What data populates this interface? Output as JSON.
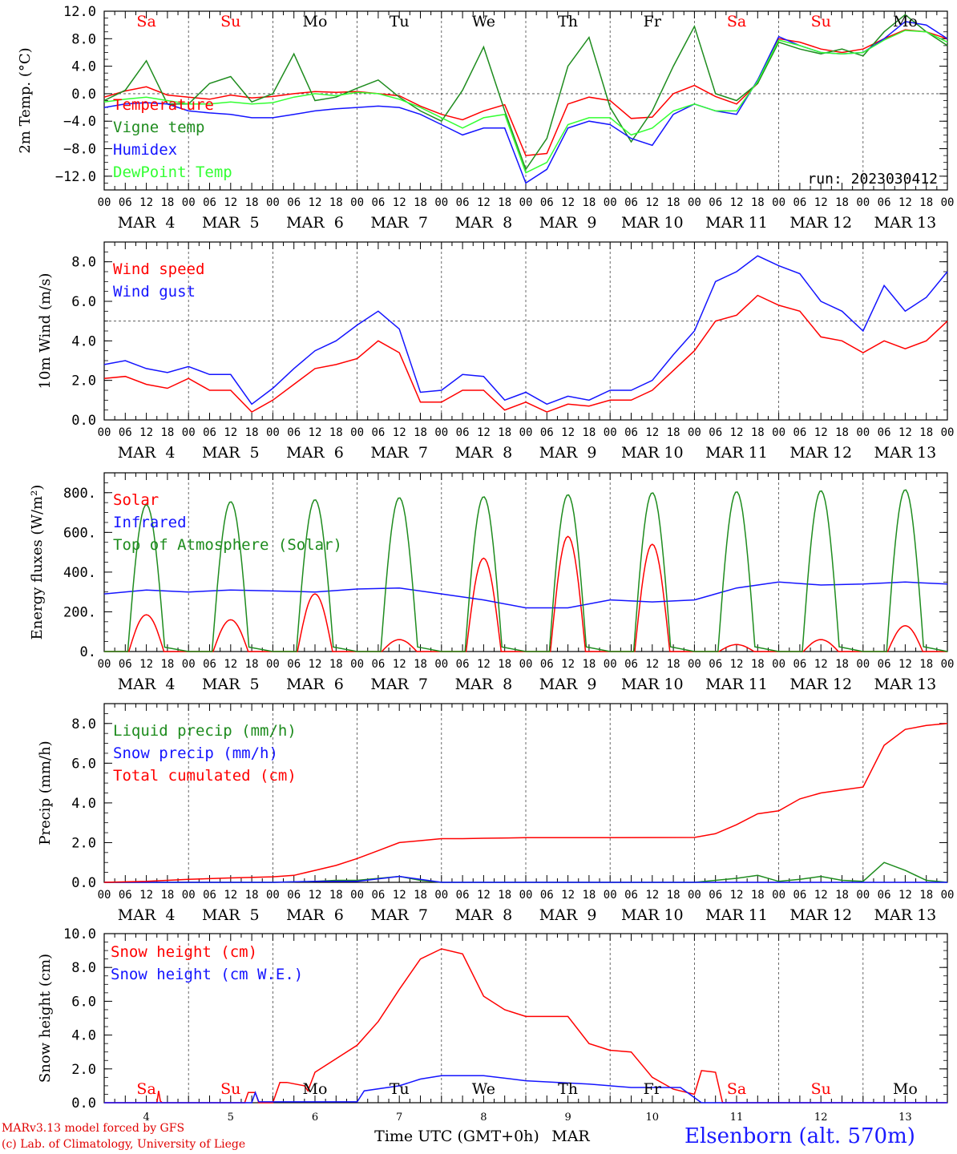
{
  "footer": {
    "credit_line1": "MARv3.13 model forced by GFS",
    "credit_line2": "(c) Lab. of Climatology, University of Liege",
    "station": "Elsenborn (alt. 570m)",
    "time_axis_label": "Time UTC (GMT+0h)",
    "month_label": "MAR"
  },
  "colors": {
    "red": "#ff0000",
    "green": "#1e8c1e",
    "blue": "#1414ff",
    "light_green": "#33ff33",
    "black": "#000000"
  },
  "time_axis": {
    "hour_ticks": [
      "00",
      "06",
      "12",
      "18"
    ],
    "day_labels": [
      "MAR  4",
      "MAR  5",
      "MAR  6",
      "MAR  7",
      "MAR  8",
      "MAR  9",
      "MAR 10",
      "MAR 11",
      "MAR 12",
      "MAR 13"
    ],
    "final_tick": "00",
    "weekdays": [
      "Sa",
      "Su",
      "Mo",
      "Tu",
      "We",
      "Th",
      "Fr",
      "Sa",
      "Su",
      "Mo"
    ],
    "weekday_colors": [
      "red",
      "red",
      "black",
      "black",
      "black",
      "black",
      "black",
      "red",
      "red",
      "black"
    ],
    "day_numbers": [
      "4",
      "5",
      "6",
      "7",
      "8",
      "9",
      "10",
      "11",
      "12",
      "13"
    ]
  },
  "chart_data": [
    {
      "type": "line",
      "ylabel": "2m Temp. (°C)",
      "ylim": [
        -14,
        12
      ],
      "yticks": [
        "12.0",
        "8.0",
        "4.0",
        "0.0",
        "−4.0",
        "−8.0",
        "−12.0"
      ],
      "ytick_values": [
        12,
        8,
        4,
        0,
        -4,
        -8,
        -12
      ],
      "reference_line": 0,
      "annotation": "run: 2023030412",
      "x_unit": "hours since MAR 4 00 UTC",
      "series": [
        {
          "name": "Temperature",
          "color": "red",
          "x": [
            0,
            6,
            12,
            18,
            24,
            30,
            36,
            42,
            48,
            54,
            60,
            66,
            72,
            78,
            84,
            90,
            96,
            102,
            108,
            114,
            120,
            126,
            132,
            138,
            144,
            150,
            156,
            162,
            168,
            174,
            180,
            186,
            192,
            198,
            204,
            210,
            216,
            222,
            228,
            234,
            240
          ],
          "values": [
            -0.5,
            0.4,
            1.0,
            -0.2,
            -0.5,
            -0.8,
            -0.2,
            -0.6,
            -0.4,
            0.0,
            0.3,
            0.2,
            0.3,
            0.0,
            -0.3,
            -1.8,
            -3.0,
            -3.8,
            -2.5,
            -1.6,
            -9.0,
            -8.7,
            -1.5,
            -0.5,
            -1.0,
            -3.6,
            -3.4,
            0.0,
            1.2,
            -0.4,
            -1.5,
            1.5,
            8.0,
            7.5,
            6.5,
            6.0,
            6.5,
            8.0,
            9.3,
            9.0,
            8.0
          ]
        },
        {
          "name": "Vigne temp",
          "color": "green",
          "x": [
            0,
            6,
            12,
            18,
            24,
            30,
            36,
            42,
            48,
            54,
            60,
            66,
            72,
            78,
            84,
            90,
            96,
            102,
            108,
            114,
            120,
            126,
            132,
            138,
            144,
            150,
            156,
            162,
            168,
            174,
            180,
            186,
            192,
            198,
            204,
            210,
            216,
            222,
            228,
            234,
            240
          ],
          "values": [
            -1.0,
            0.5,
            4.8,
            -1.5,
            -1.5,
            1.5,
            2.5,
            -1.2,
            0.0,
            5.8,
            -1.0,
            -0.5,
            0.8,
            2.0,
            -0.5,
            -2.5,
            -4.0,
            0.5,
            6.8,
            -2.5,
            -11.0,
            -6.5,
            4.0,
            8.2,
            -2.0,
            -7.0,
            -2.5,
            4.0,
            9.8,
            0.0,
            -1.0,
            1.5,
            7.5,
            6.5,
            5.8,
            6.5,
            5.5,
            9.0,
            11.5,
            9.0,
            7.0
          ]
        },
        {
          "name": "Humidex",
          "color": "blue",
          "x": [
            0,
            6,
            12,
            18,
            24,
            30,
            36,
            42,
            48,
            54,
            60,
            66,
            72,
            78,
            84,
            90,
            96,
            102,
            108,
            114,
            120,
            126,
            132,
            138,
            144,
            150,
            156,
            162,
            168,
            174,
            180,
            186,
            192,
            198,
            204,
            210,
            216,
            222,
            228,
            234,
            240
          ],
          "values": [
            -2.0,
            -1.5,
            -1.3,
            -1.5,
            -2.5,
            -2.8,
            -3.0,
            -3.5,
            -3.5,
            -3.0,
            -2.5,
            -2.2,
            -2.0,
            -1.8,
            -2.0,
            -3.0,
            -4.5,
            -6.0,
            -5.0,
            -5.0,
            -13.0,
            -11.0,
            -5.0,
            -4.0,
            -4.5,
            -6.5,
            -7.5,
            -3.0,
            -1.5,
            -2.5,
            -3.0,
            2.0,
            8.3,
            7.0,
            6.0,
            5.8,
            6.0,
            8.0,
            10.5,
            10.0,
            8.0
          ]
        },
        {
          "name": "DewPoint Temp",
          "color": "light_green",
          "x": [
            0,
            6,
            12,
            18,
            24,
            30,
            36,
            42,
            48,
            54,
            60,
            66,
            72,
            78,
            84,
            90,
            96,
            102,
            108,
            114,
            120,
            126,
            132,
            138,
            144,
            150,
            156,
            162,
            168,
            174,
            180,
            186,
            192,
            198,
            204,
            210,
            216,
            222,
            228,
            234,
            240
          ],
          "values": [
            -1.2,
            -0.8,
            -0.5,
            -1.0,
            -1.5,
            -1.5,
            -1.2,
            -1.5,
            -1.3,
            -0.5,
            0.0,
            -0.3,
            0.2,
            0.0,
            -0.8,
            -2.0,
            -3.5,
            -5.0,
            -3.5,
            -3.0,
            -11.5,
            -10.0,
            -4.5,
            -3.5,
            -3.5,
            -6.0,
            -5.0,
            -2.5,
            -1.5,
            -2.5,
            -2.5,
            1.8,
            7.8,
            7.0,
            6.0,
            5.8,
            6.0,
            7.8,
            9.2,
            9.0,
            7.5
          ]
        }
      ]
    },
    {
      "type": "line",
      "ylabel": "10m Wind (m/s)",
      "ylim": [
        0,
        9
      ],
      "yticks": [
        "8.0",
        "6.0",
        "4.0",
        "2.0",
        "0.0"
      ],
      "ytick_values": [
        8,
        6,
        4,
        2,
        0
      ],
      "reference_line": 5,
      "x_unit": "hours since MAR 4 00 UTC",
      "series": [
        {
          "name": "Wind speed",
          "color": "red",
          "x": [
            0,
            6,
            12,
            18,
            24,
            30,
            36,
            42,
            48,
            54,
            60,
            66,
            72,
            78,
            84,
            90,
            96,
            102,
            108,
            114,
            120,
            126,
            132,
            138,
            144,
            150,
            156,
            162,
            168,
            174,
            180,
            186,
            192,
            198,
            204,
            210,
            216,
            222,
            228,
            234,
            240
          ],
          "values": [
            2.1,
            2.2,
            1.8,
            1.6,
            2.1,
            1.5,
            1.5,
            0.4,
            1.0,
            1.8,
            2.6,
            2.8,
            3.1,
            4.0,
            3.4,
            0.9,
            0.9,
            1.5,
            1.5,
            0.5,
            0.9,
            0.4,
            0.8,
            0.7,
            1.0,
            1.0,
            1.5,
            2.5,
            3.5,
            5.0,
            5.3,
            6.3,
            5.8,
            5.5,
            4.2,
            4.0,
            3.4,
            4.0,
            3.6,
            4.0,
            5.0
          ]
        },
        {
          "name": "Wind gust",
          "color": "blue",
          "x": [
            0,
            6,
            12,
            18,
            24,
            30,
            36,
            42,
            48,
            54,
            60,
            66,
            72,
            78,
            84,
            90,
            96,
            102,
            108,
            114,
            120,
            126,
            132,
            138,
            144,
            150,
            156,
            162,
            168,
            174,
            180,
            186,
            192,
            198,
            204,
            210,
            216,
            222,
            228,
            234,
            240
          ],
          "values": [
            2.8,
            3.0,
            2.6,
            2.4,
            2.7,
            2.3,
            2.3,
            0.8,
            1.6,
            2.6,
            3.5,
            4.0,
            4.8,
            5.5,
            4.6,
            1.4,
            1.5,
            2.3,
            2.2,
            1.0,
            1.4,
            0.8,
            1.2,
            1.0,
            1.5,
            1.5,
            2.0,
            3.3,
            4.5,
            7.0,
            7.5,
            8.3,
            7.8,
            7.4,
            6.0,
            5.5,
            4.5,
            6.8,
            5.5,
            6.2,
            7.5
          ]
        }
      ]
    },
    {
      "type": "line",
      "ylabel": "Energy fluxes (W/m²)",
      "ylim": [
        0,
        900
      ],
      "yticks": [
        "800.",
        "600.",
        "400.",
        "200.",
        "0."
      ],
      "ytick_values": [
        800,
        600,
        400,
        200,
        0
      ],
      "x_unit": "hours since MAR 4 00 UTC",
      "series": [
        {
          "name": "Solar",
          "color": "red",
          "daily_peak_hour": 12,
          "daily_halfwidth_hours": 5,
          "daily_peaks": [
            185,
            160,
            290,
            60,
            470,
            580,
            540,
            35,
            60,
            130
          ]
        },
        {
          "name": "Infrared",
          "color": "blue",
          "x": [
            0,
            12,
            24,
            36,
            48,
            60,
            72,
            84,
            96,
            108,
            120,
            132,
            144,
            156,
            168,
            180,
            192,
            204,
            216,
            228,
            240
          ],
          "values": [
            290,
            310,
            300,
            310,
            305,
            300,
            315,
            320,
            290,
            260,
            220,
            220,
            260,
            250,
            260,
            320,
            350,
            335,
            340,
            350,
            340
          ]
        },
        {
          "name": "Top of Atmosphere (Solar)",
          "color": "green",
          "daily_peak_hour": 12,
          "daily_halfwidth_hours": 5.3,
          "daily_peaks": [
            740,
            755,
            765,
            775,
            780,
            790,
            800,
            805,
            810,
            815
          ]
        }
      ]
    },
    {
      "type": "line",
      "ylabel": "Precip (mm/h)",
      "ylim": [
        0,
        9
      ],
      "yticks": [
        "8.0",
        "6.0",
        "4.0",
        "2.0",
        "0.0"
      ],
      "ytick_values": [
        8,
        6,
        4,
        2,
        0
      ],
      "x_unit": "hours since MAR 4 00 UTC",
      "series": [
        {
          "name": "Liquid precip (mm/h)",
          "color": "green",
          "x": [
            0,
            24,
            48,
            60,
            66,
            72,
            84,
            90,
            96,
            108,
            120,
            144,
            168,
            174,
            180,
            186,
            192,
            198,
            204,
            210,
            216,
            222,
            228,
            234,
            240
          ],
          "values": [
            0,
            0,
            0,
            0.05,
            0.1,
            0.1,
            0.3,
            0.1,
            0,
            0,
            0,
            0,
            0,
            0.1,
            0.2,
            0.35,
            0.05,
            0.15,
            0.3,
            0.1,
            0.05,
            1.0,
            0.6,
            0.1,
            0
          ]
        },
        {
          "name": "Snow precip (mm/h)",
          "color": "blue",
          "x": [
            0,
            48,
            60,
            72,
            84,
            90,
            96,
            108,
            120,
            240
          ],
          "values": [
            0,
            0,
            0.05,
            0.05,
            0.3,
            0.15,
            0,
            0,
            0,
            0
          ]
        },
        {
          "name": "Total cumulated (cm)",
          "color": "red",
          "x": [
            0,
            12,
            24,
            36,
            48,
            54,
            60,
            66,
            72,
            78,
            84,
            90,
            96,
            102,
            108,
            120,
            144,
            168,
            174,
            180,
            186,
            192,
            198,
            204,
            210,
            216,
            222,
            228,
            234,
            240
          ],
          "values": [
            0,
            0.05,
            0.15,
            0.22,
            0.28,
            0.35,
            0.6,
            0.85,
            1.2,
            1.6,
            2.0,
            2.1,
            2.2,
            2.2,
            2.22,
            2.25,
            2.25,
            2.26,
            2.45,
            2.9,
            3.45,
            3.6,
            4.2,
            4.5,
            4.65,
            4.8,
            6.9,
            7.7,
            7.9,
            8.0
          ]
        }
      ]
    },
    {
      "type": "line",
      "ylabel": "Snow height (cm)",
      "ylim": [
        0,
        10
      ],
      "yticks": [
        "10.0",
        "8.0",
        "6.0",
        "4.0",
        "2.0",
        "0.0"
      ],
      "ytick_values": [
        10,
        8,
        6,
        4,
        2,
        0
      ],
      "x_unit": "hours since MAR 4 00 UTC",
      "series": [
        {
          "name": "Snow height (cm)",
          "color": "red",
          "x": [
            0,
            15,
            15.5,
            16,
            16.5,
            40,
            41,
            43,
            44,
            48,
            50,
            52,
            57,
            58,
            60,
            66,
            72,
            78,
            84,
            90,
            96,
            102,
            108,
            114,
            120,
            132,
            138,
            144,
            150,
            156,
            162,
            168,
            170,
            174,
            176,
            180,
            184,
            210,
            240
          ],
          "values": [
            0,
            0,
            0.7,
            0.1,
            0,
            0,
            0.6,
            0.6,
            0,
            0,
            1.2,
            1.2,
            1.0,
            0.7,
            1.8,
            2.6,
            3.4,
            4.8,
            6.7,
            8.5,
            9.1,
            8.8,
            6.3,
            5.5,
            5.1,
            5.1,
            3.5,
            3.1,
            3.0,
            1.5,
            0.8,
            0.5,
            1.9,
            1.8,
            0,
            0,
            0,
            0,
            0
          ]
        },
        {
          "name": "Snow height (cm W.E.)",
          "color": "blue",
          "x": [
            0,
            42,
            43,
            44,
            72,
            74,
            84,
            90,
            96,
            108,
            120,
            138,
            150,
            156,
            164,
            170,
            174,
            240
          ],
          "values": [
            0,
            0,
            0.6,
            0.05,
            0.05,
            0.7,
            1.0,
            1.4,
            1.6,
            1.6,
            1.3,
            1.1,
            0.9,
            0.9,
            0.9,
            0,
            0,
            0
          ]
        }
      ]
    }
  ]
}
